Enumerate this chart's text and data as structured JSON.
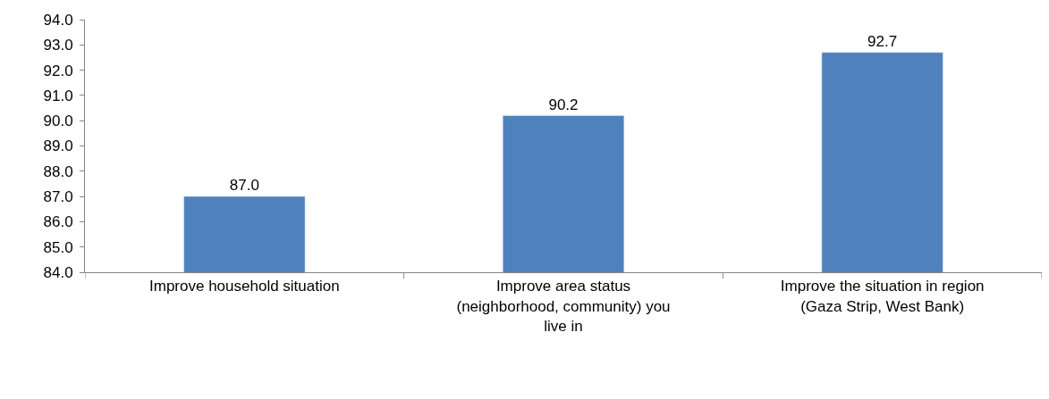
{
  "chart_data": {
    "type": "bar",
    "categories": [
      "Improve household situation",
      "Improve area status (neighborhood, community) you live in",
      "Improve the situation in region (Gaza Strip, West Bank)"
    ],
    "values": [
      87.0,
      90.2,
      92.7
    ],
    "color": "#4f81bd",
    "ylim": [
      84,
      94
    ],
    "yticks": [
      {
        "value": 84,
        "label": "84.0"
      },
      {
        "value": 85,
        "label": "85.0"
      },
      {
        "value": 86,
        "label": "86.0"
      },
      {
        "value": 87,
        "label": "87.0"
      },
      {
        "value": 88,
        "label": "88.0"
      },
      {
        "value": 89,
        "label": "89.0"
      },
      {
        "value": 90,
        "label": "90.0"
      },
      {
        "value": 91,
        "label": "91.0"
      },
      {
        "value": 92,
        "label": "92.0"
      },
      {
        "value": 93,
        "label": "93.0"
      },
      {
        "value": 94,
        "label": "94.0"
      }
    ],
    "value_labels": [
      "87.0",
      "90.2",
      "92.7"
    ],
    "legend": false
  }
}
